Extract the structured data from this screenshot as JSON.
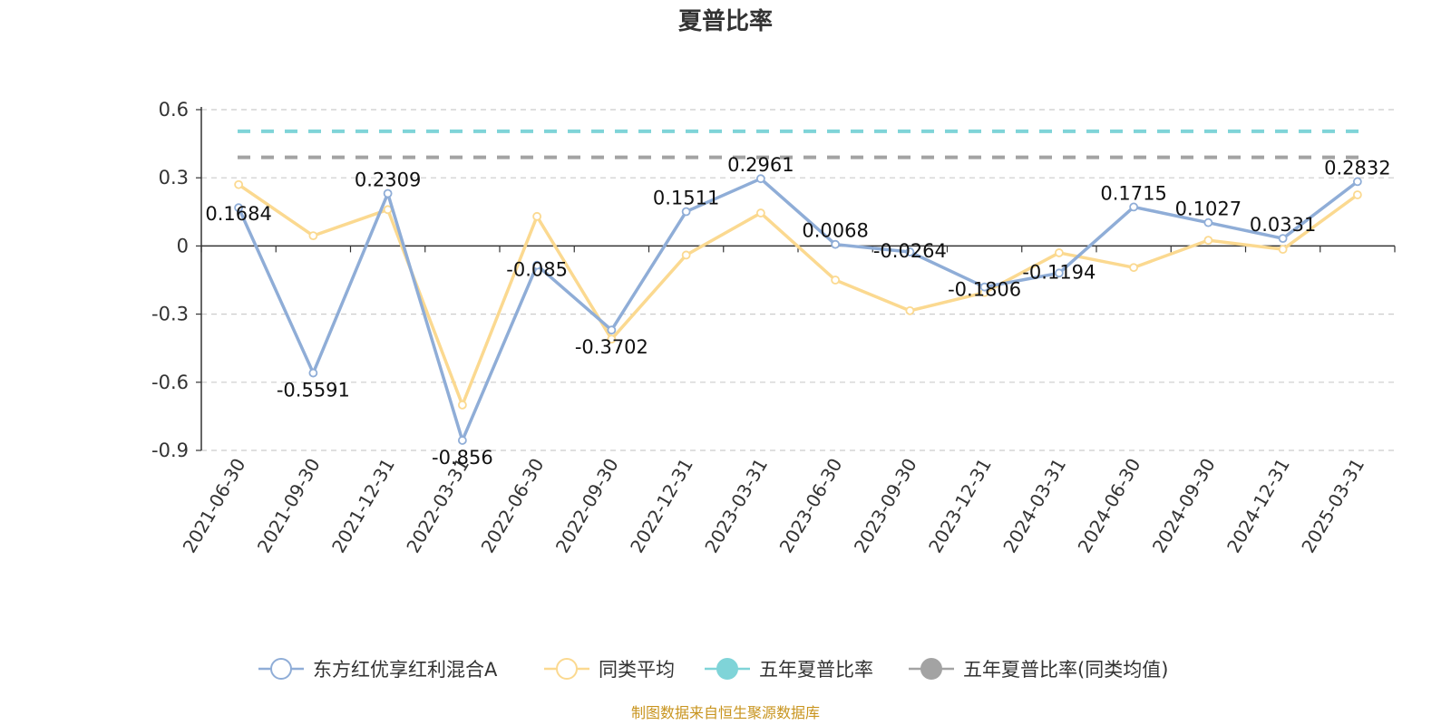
{
  "chart_data": {
    "type": "line",
    "title": "夏普比率",
    "source_note": "制图数据来自恒生聚源数据库",
    "x": [
      "2021-06-30",
      "2021-09-30",
      "2021-12-31",
      "2022-03-31",
      "2022-06-30",
      "2022-09-30",
      "2022-12-31",
      "2023-03-31",
      "2023-06-30",
      "2023-09-30",
      "2023-12-31",
      "2024-03-31",
      "2024-06-30",
      "2024-09-30",
      "2024-12-31",
      "2025-03-31"
    ],
    "ylim": [
      -0.9,
      0.6
    ],
    "yticks": [
      "0.6",
      "0.3",
      "0",
      "-0.3",
      "-0.6",
      "-0.9"
    ],
    "grid": true,
    "legend_position": "bottom-center",
    "series": [
      {
        "name": "东方红优享红利混合A",
        "color": "#8fadd7",
        "values": [
          0.1684,
          -0.5591,
          0.2309,
          -0.856,
          -0.085,
          -0.3702,
          0.1511,
          0.2961,
          0.0068,
          -0.0264,
          -0.1806,
          -0.1194,
          0.1715,
          0.1027,
          0.0331,
          0.2832
        ],
        "labels": [
          "0.1684",
          "-0.5591",
          "0.2309",
          "-0.856",
          "-0.085",
          "-0.3702",
          "0.1511",
          "0.2961",
          "0.0068",
          "-0.0264",
          "-0.1806",
          "-0.1194",
          "0.1715",
          "0.1027",
          "0.0331",
          "0.2832"
        ]
      },
      {
        "name": "同类平均",
        "color": "#fbd990",
        "values": [
          0.27,
          0.045,
          0.16,
          -0.7,
          0.13,
          -0.41,
          -0.04,
          0.145,
          -0.15,
          -0.285,
          -0.205,
          -0.03,
          -0.095,
          0.025,
          -0.015,
          0.225
        ]
      },
      {
        "name": "五年夏普比率",
        "color": "#7fd4d8",
        "constant": 0.505
      },
      {
        "name": "五年夏普比率(同类均值)",
        "color": "#a3a3a3",
        "constant": 0.39
      }
    ]
  }
}
